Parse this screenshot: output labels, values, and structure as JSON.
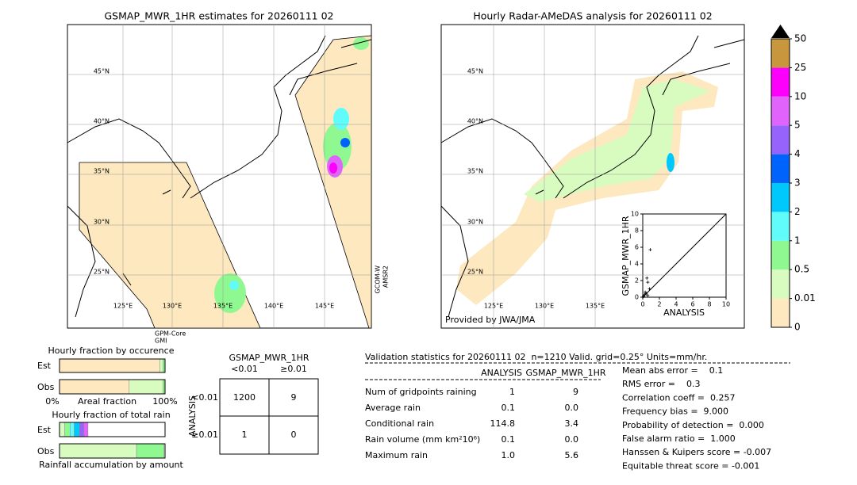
{
  "left_map": {
    "title": "GSMAP_MWR_1HR estimates for 20260111 02",
    "lat_labels": [
      "45°N",
      "40°N",
      "35°N",
      "30°N",
      "25°N"
    ],
    "lon_labels": [
      "125°E",
      "130°E",
      "135°E",
      "140°E",
      "145°E"
    ],
    "sat_right": [
      "GCOM-W",
      "AMSR2"
    ],
    "sat_bottom": [
      "GPM-Core",
      "GMI"
    ]
  },
  "right_map": {
    "title": "Hourly Radar-AMeDAS analysis for 20260111 02",
    "lat_labels": [
      "45°N",
      "40°N",
      "35°N",
      "30°N",
      "25°N"
    ],
    "lon_labels": [
      "125°E",
      "130°E",
      "135°E"
    ],
    "credit": "Provided by JWA/JMA"
  },
  "scatter": {
    "xlabel": "ANALYSIS",
    "ylabel": "GSMAP_MWR_1HR",
    "xlim": [
      0,
      10
    ],
    "ylim": [
      0,
      10
    ],
    "xticks": [
      0,
      2,
      4,
      6,
      8,
      10
    ],
    "yticks": [
      0,
      2,
      4,
      6,
      8,
      10
    ],
    "x": [
      0.9,
      0.5,
      0.6,
      0.8,
      0.3,
      0.2,
      0.4,
      0.1,
      0.6,
      0.0
    ],
    "y": [
      5.7,
      2.3,
      1.8,
      1.0,
      0.6,
      0.3,
      0.4,
      0.1,
      0.2,
      0.0
    ]
  },
  "colorbar": {
    "levels": [
      0,
      0.01,
      0.5,
      1,
      2,
      3,
      4,
      5,
      10,
      25,
      50
    ],
    "colors": [
      "#fde8c0",
      "#d8fcc0",
      "#90f890",
      "#60fcfc",
      "#00c8fc",
      "#0064fc",
      "#9664fc",
      "#e064fc",
      "#fc00fc",
      "#c8963c"
    ]
  },
  "fraction_occurrence": {
    "title": "Hourly fraction by occurence",
    "rows": [
      "Est",
      "Obs"
    ],
    "axis_left": "0%",
    "axis_label": "Areal fraction",
    "axis_right": "100%",
    "est": [
      0.95,
      0.03,
      0.02
    ],
    "obs": [
      0.66,
      0.32,
      0.02
    ],
    "colors": [
      "#fde8c0",
      "#d8fcc0",
      "#90f890"
    ]
  },
  "fraction_total": {
    "title": "Hourly fraction of total rain",
    "rows": [
      "Est",
      "Obs"
    ],
    "xlabel": "Rainfall accumulation by amount",
    "est": [
      0.05,
      0.05,
      0.04,
      0.05,
      0.04,
      0.04
    ],
    "obs": [
      0.73,
      0.26
    ],
    "est_colors": [
      "#d8fcc0",
      "#90f890",
      "#60fcfc",
      "#00c8fc",
      "#9664fc",
      "#e064fc"
    ],
    "obs_colors": [
      "#d8fcc0",
      "#90f890"
    ]
  },
  "contingency": {
    "title": "GSMAP_MWR_1HR",
    "columns": [
      "<0.01",
      "≥0.01"
    ],
    "ylabel": "ANALYSIS",
    "rows": [
      "<0.01",
      "≥0.01"
    ],
    "cells": [
      [
        "1200",
        "9"
      ],
      [
        "1",
        "0"
      ]
    ]
  },
  "validation": {
    "header": "Validation statistics for 20260111 02  n=1210 Valid. grid=0.25° Units=mm/hr.",
    "columns": [
      "ANALYSIS",
      "GSMAP_MWR_1HR"
    ],
    "rows": [
      [
        "Num of gridpoints raining",
        "1",
        "9"
      ],
      [
        "Average rain",
        "0.1",
        "0.0"
      ],
      [
        "Conditional rain",
        "114.8",
        "3.4"
      ],
      [
        "Rain volume (mm km²10⁶)",
        "0.1",
        "0.0"
      ],
      [
        "Maximum rain",
        "1.0",
        "5.6"
      ]
    ],
    "scores": [
      "Mean abs error =    0.1",
      "RMS error =    0.3",
      "Correlation coeff =  0.257",
      "Frequency bias =  9.000",
      "Probability of detection =  0.000",
      "False alarm ratio =  1.000",
      "Hanssen & Kuipers score = -0.007",
      "Equitable threat score = -0.001"
    ]
  }
}
